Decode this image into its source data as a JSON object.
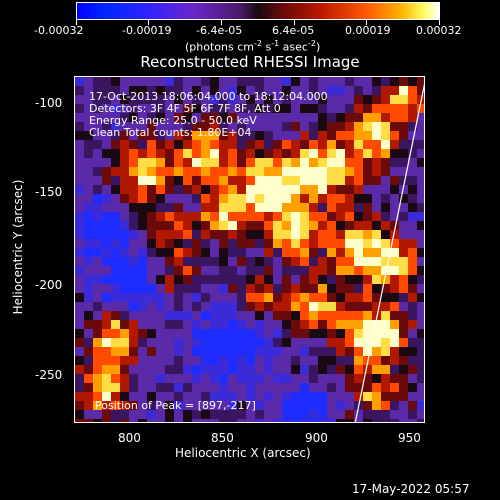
{
  "colorbar": {
    "ticks": [
      "-0.00032",
      "-0.00019",
      "-6.4e-05",
      "6.4e-05",
      "0.00019",
      "0.00032"
    ],
    "units_label": "(photons cm",
    "units_sup1": "-2",
    "units_mid": " s",
    "units_sup2": "-1",
    "units_mid2": " asec",
    "units_sup3": "-2",
    "units_end": ")"
  },
  "plot": {
    "title": "Reconstructed RHESSI Image",
    "xlabel": "Heliocentric X (arcsec)",
    "ylabel": "Heliocentric Y (arcsec)",
    "xticks": [
      "800",
      "850",
      "900",
      "950"
    ],
    "yticks": [
      "-100",
      "-150",
      "-200",
      "-250"
    ],
    "annotation_time": "17-Oct-2013 18:06:04.000 to 18:12:04.000",
    "annotation_detectors": "Detectors: 3F 4F 5F 6F 7F 8F, Att 0",
    "annotation_energy": "Energy Range: 25.0 - 50.0 keV",
    "annotation_clean": "Clean     Total counts: 1.80E+04",
    "peak_label": "Position of Peak = [897,-217]"
  },
  "footer": {
    "timestamp": "17-May-2022 05:57"
  },
  "colors": {
    "background": "#000000",
    "foreground": "#ffffff"
  }
}
